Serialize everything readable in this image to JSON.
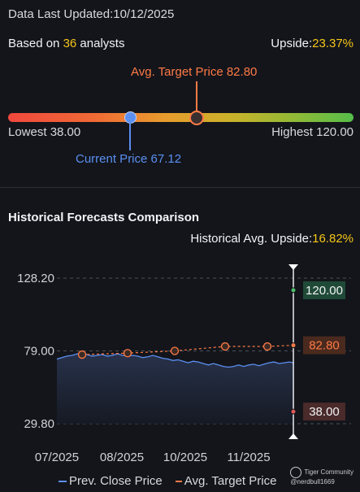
{
  "header": {
    "updated": "Data Last Updated:10/12/2025",
    "analysts_prefix": "Based on ",
    "analysts_count": "36",
    "analysts_suffix": " analysts",
    "upside_label": "Upside:",
    "upside_value": "23.37%"
  },
  "target": {
    "avg_label": "Avg. Target Price 82.80",
    "current_label": "Current Price 67.12",
    "lowest_label": "Lowest 38.00",
    "highest_label": "Highest 120.00",
    "lowest": 38.0,
    "highest": 120.0,
    "avg": 82.8,
    "current": 67.12
  },
  "history": {
    "title": "Historical Forecasts Comparison",
    "upside_label": "Historical Avg. Upside:",
    "upside_value": "16.82%"
  },
  "chart_data": {
    "type": "line",
    "ylim": [
      29.8,
      128.2
    ],
    "y_ticks": [
      "128.20",
      "79.00",
      "29.80"
    ],
    "x_ticks": [
      "07/2025",
      "08/2025",
      "10/2025",
      "11/2025"
    ],
    "series": [
      {
        "name": "Prev. Close Price",
        "color": "#5b8ff0",
        "values": [
          73.5,
          74.5,
          75.5,
          76.0,
          77.0,
          77.5,
          76.5,
          75.5,
          76.0,
          76.5,
          75.5,
          76.0,
          77.0,
          76.0,
          75.5,
          76.0,
          75.5,
          74.5,
          75.0,
          76.0,
          75.0,
          74.0,
          73.5,
          72.5,
          73.0,
          72.0,
          71.0,
          72.0,
          71.5,
          70.5,
          69.5,
          70.5,
          69.5,
          68.5,
          68.0,
          68.5,
          69.5,
          68.5,
          69.5,
          70.0,
          69.0,
          70.0,
          71.0,
          71.5,
          70.5,
          71.0,
          71.5,
          71.0
        ]
      },
      {
        "name": "Avg. Target Price",
        "color": "#ff7a45",
        "values": [
          76.5,
          77.5,
          79.0,
          82.0,
          82.0,
          82.8
        ]
      }
    ],
    "right_labels": [
      {
        "text": "120.00",
        "value": 120.0,
        "color": "#1f4a37",
        "dot": "#4fbf6b"
      },
      {
        "text": "82.80",
        "value": 82.8,
        "color": "#4a2a1e",
        "dot": "#ff7a45",
        "text_color": "#ff7a45"
      },
      {
        "text": "38.00",
        "value": 38.0,
        "color": "#4a2a2a",
        "dot": "#e25a5a"
      }
    ]
  },
  "legend": {
    "prev_close": "Prev. Close Price",
    "avg_target": "Avg. Target Price"
  },
  "watermark": {
    "line1": "Tiger Community",
    "line2": "@nerdbull1669"
  }
}
